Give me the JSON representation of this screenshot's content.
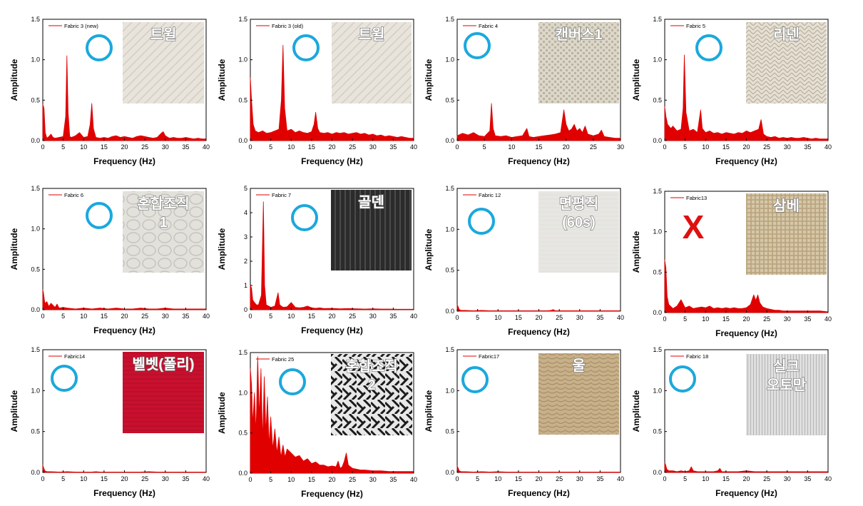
{
  "chart_data": [
    {
      "type": "line",
      "legend": "Fabric 3 (new)",
      "xlabel": "Frequency (Hz)",
      "ylabel": "Amplitude",
      "xlim": [
        0,
        40
      ],
      "ylim": [
        0,
        1.5
      ],
      "xticks": [
        0,
        5,
        10,
        15,
        20,
        25,
        30,
        35,
        40
      ],
      "yticks": [
        "0.0",
        "0.5",
        "1.0",
        "1.5"
      ],
      "fabric_label": "트윌",
      "mark": "O",
      "swatch": {
        "type": "twill",
        "bg": "#e8e4dc",
        "line": "#d2cdc2"
      },
      "x": [
        0,
        0.3,
        0.6,
        1,
        1.5,
        2,
        2.5,
        3,
        4,
        5,
        5.6,
        5.9,
        6.2,
        6.6,
        7,
        8,
        9,
        10,
        11,
        11.6,
        12,
        12.4,
        13,
        14,
        15,
        16,
        17,
        18,
        19,
        20,
        21,
        22,
        23,
        24,
        25,
        26,
        27,
        28,
        29,
        29.5,
        30,
        31,
        32,
        33,
        34,
        35,
        36,
        37,
        38,
        39,
        40
      ],
      "y": [
        0.45,
        0.4,
        0.1,
        0.03,
        0.05,
        0.08,
        0.04,
        0.03,
        0.04,
        0.05,
        0.3,
        1.05,
        0.35,
        0.05,
        0.04,
        0.06,
        0.1,
        0.04,
        0.05,
        0.2,
        0.46,
        0.15,
        0.04,
        0.03,
        0.04,
        0.03,
        0.05,
        0.06,
        0.04,
        0.05,
        0.04,
        0.03,
        0.05,
        0.06,
        0.05,
        0.04,
        0.03,
        0.04,
        0.09,
        0.11,
        0.06,
        0.03,
        0.04,
        0.03,
        0.03,
        0.04,
        0.03,
        0.02,
        0.03,
        0.02,
        0.02
      ]
    },
    {
      "type": "line",
      "legend": "Fabric 3 (old)",
      "xlabel": "Frequency (Hz)",
      "ylabel": "Amplitude",
      "xlim": [
        0,
        40
      ],
      "ylim": [
        0,
        1.5
      ],
      "xticks": [
        0,
        5,
        10,
        15,
        20,
        25,
        30,
        35,
        40
      ],
      "yticks": [
        "0.0",
        "0.5",
        "1.0",
        "1.5"
      ],
      "fabric_label": "트윌",
      "mark": "O",
      "swatch": {
        "type": "twill",
        "bg": "#e8e4dc",
        "line": "#d2cdc2"
      },
      "x": [
        0,
        0.3,
        0.7,
        1.2,
        2,
        3,
        4,
        5,
        6,
        7,
        7.6,
        8,
        8.4,
        9,
        10,
        11,
        12,
        13,
        14,
        15,
        15.6,
        16,
        16.5,
        17,
        18,
        19,
        20,
        21,
        22,
        23,
        24,
        25,
        26,
        27,
        28,
        29,
        30,
        31,
        32,
        33,
        34,
        35,
        36,
        37,
        38,
        39,
        40
      ],
      "y": [
        0.78,
        0.5,
        0.2,
        0.12,
        0.1,
        0.12,
        0.09,
        0.1,
        0.12,
        0.14,
        0.5,
        1.18,
        0.4,
        0.12,
        0.14,
        0.1,
        0.12,
        0.1,
        0.09,
        0.11,
        0.2,
        0.35,
        0.15,
        0.1,
        0.09,
        0.1,
        0.08,
        0.1,
        0.09,
        0.1,
        0.08,
        0.09,
        0.1,
        0.08,
        0.09,
        0.07,
        0.08,
        0.06,
        0.07,
        0.05,
        0.06,
        0.05,
        0.04,
        0.05,
        0.04,
        0.03,
        0.03
      ]
    },
    {
      "type": "line",
      "legend": "Fabric 4",
      "xlabel": "Frequency (Hz)",
      "ylabel": "Amplitude",
      "xlim": [
        0,
        30
      ],
      "ylim": [
        0,
        1.5
      ],
      "xticks": [
        0,
        5,
        10,
        15,
        20,
        25,
        30
      ],
      "yticks": [
        "0.0",
        "0.5",
        "1.0",
        "1.5"
      ],
      "fabric_label": "캔버스1",
      "mark": "O",
      "swatch": {
        "type": "canvas",
        "bg": "#dcd7c9",
        "line": "#b9b3a2"
      },
      "x": [
        0,
        1,
        2,
        3,
        4,
        5,
        6,
        6.3,
        6.6,
        7,
        8,
        9,
        10,
        11,
        12,
        12.8,
        13.2,
        14,
        15,
        16,
        17,
        18,
        19,
        19.6,
        20,
        20.5,
        21,
        21.5,
        22,
        22.5,
        23,
        23.5,
        24,
        25,
        26,
        26.5,
        27,
        28,
        29,
        30
      ],
      "y": [
        0.06,
        0.09,
        0.07,
        0.1,
        0.06,
        0.05,
        0.12,
        0.46,
        0.15,
        0.06,
        0.05,
        0.06,
        0.04,
        0.05,
        0.06,
        0.15,
        0.05,
        0.04,
        0.05,
        0.06,
        0.07,
        0.08,
        0.1,
        0.38,
        0.2,
        0.12,
        0.14,
        0.2,
        0.12,
        0.15,
        0.1,
        0.18,
        0.08,
        0.06,
        0.08,
        0.13,
        0.05,
        0.04,
        0.03,
        0.03
      ]
    },
    {
      "type": "line",
      "legend": "Fabric 5",
      "xlabel": "Frequency (Hz)",
      "ylabel": "Amplitude",
      "xlim": [
        0,
        40
      ],
      "ylim": [
        0,
        1.5
      ],
      "xticks": [
        0,
        5,
        10,
        15,
        20,
        25,
        30,
        35,
        40
      ],
      "yticks": [
        "0.0",
        "0.5",
        "1.0",
        "1.5"
      ],
      "fabric_label": "리넨",
      "mark": "O",
      "swatch": {
        "type": "herring",
        "bg": "#e6e0d4",
        "line": "#b7ae9c"
      },
      "x": [
        0,
        0.3,
        0.7,
        1.5,
        2,
        3,
        4,
        4.5,
        4.8,
        5.2,
        6,
        7,
        8,
        8.8,
        9.2,
        10,
        11,
        12,
        13,
        14,
        15,
        16,
        17,
        18,
        19,
        20,
        21,
        22,
        23,
        23.6,
        24.2,
        25,
        26,
        27,
        28,
        29,
        30,
        31,
        32,
        33,
        34,
        35,
        36,
        37,
        38,
        39,
        40
      ],
      "y": [
        0.42,
        0.3,
        0.2,
        0.15,
        0.18,
        0.12,
        0.14,
        0.4,
        1.06,
        0.35,
        0.12,
        0.14,
        0.1,
        0.38,
        0.15,
        0.1,
        0.12,
        0.09,
        0.1,
        0.08,
        0.1,
        0.09,
        0.08,
        0.1,
        0.09,
        0.12,
        0.1,
        0.12,
        0.14,
        0.26,
        0.08,
        0.05,
        0.04,
        0.05,
        0.03,
        0.04,
        0.03,
        0.04,
        0.03,
        0.03,
        0.04,
        0.03,
        0.02,
        0.03,
        0.02,
        0.02,
        0.02
      ]
    },
    {
      "type": "line",
      "legend": "Fabric 6",
      "xlabel": "Frequency (Hz)",
      "ylabel": "Amplitude",
      "xlim": [
        0,
        40
      ],
      "ylim": [
        0,
        1.5
      ],
      "xticks": [
        0,
        5,
        10,
        15,
        20,
        25,
        30,
        35,
        40
      ],
      "yticks": [
        "0.0",
        "0.5",
        "1.0",
        "1.5"
      ],
      "fabric_label": "혼합조직 1",
      "mark": "O",
      "swatch": {
        "type": "honeycomb",
        "bg": "#e2e1dc",
        "line": "#c6c4bc"
      },
      "x": [
        0,
        0.2,
        0.5,
        1,
        1.5,
        2,
        3,
        3.5,
        4,
        5,
        6,
        8,
        10,
        12,
        14,
        16,
        18,
        20,
        22,
        24,
        26,
        28,
        30,
        32,
        34,
        36,
        38,
        40
      ],
      "y": [
        0.25,
        0.2,
        0.08,
        0.1,
        0.04,
        0.08,
        0.03,
        0.07,
        0.02,
        0.03,
        0.02,
        0.01,
        0.02,
        0.01,
        0.02,
        0.01,
        0.02,
        0.01,
        0.01,
        0.02,
        0.01,
        0.01,
        0.02,
        0.01,
        0.01,
        0.01,
        0.01,
        0.01
      ]
    },
    {
      "type": "line",
      "legend": "Fabric 7",
      "xlabel": "Frequency (Hz)",
      "ylabel": "Amplitude",
      "xlim": [
        0,
        40
      ],
      "ylim": [
        0,
        5
      ],
      "xticks": [
        0,
        5,
        10,
        15,
        20,
        25,
        30,
        35,
        40
      ],
      "yticks": [
        "0",
        "1",
        "2",
        "3",
        "4",
        "5"
      ],
      "fabric_label": "골덴",
      "mark": "O",
      "swatch": {
        "type": "corduroy",
        "bg": "#2b2b2b",
        "line": "#4a4a4a"
      },
      "x": [
        0,
        0.3,
        0.6,
        1,
        1.5,
        2,
        2.7,
        3.2,
        3.5,
        3.9,
        4.5,
        5,
        6,
        6.8,
        7.2,
        8,
        9,
        10,
        11,
        12,
        13,
        14,
        15,
        16,
        17,
        18,
        20,
        22,
        24,
        26,
        28,
        30,
        32,
        34,
        36,
        38,
        40
      ],
      "y": [
        1.0,
        0.9,
        0.4,
        0.3,
        0.2,
        0.2,
        0.6,
        4.45,
        1.0,
        0.2,
        0.15,
        0.1,
        0.15,
        0.7,
        0.2,
        0.1,
        0.12,
        0.3,
        0.1,
        0.08,
        0.1,
        0.15,
        0.08,
        0.06,
        0.08,
        0.05,
        0.06,
        0.04,
        0.05,
        0.04,
        0.03,
        0.04,
        0.03,
        0.03,
        0.02,
        0.02,
        0.02
      ]
    },
    {
      "type": "line",
      "legend": "Fabric 12",
      "xlabel": "Frequency (Hz)",
      "ylabel": "Amplitude",
      "xlim": [
        0,
        40
      ],
      "ylim": [
        0,
        1.5
      ],
      "xticks": [
        0,
        5,
        10,
        15,
        20,
        25,
        30,
        35,
        40
      ],
      "yticks": [
        "0.0",
        "0.5",
        "1.0",
        "1.5"
      ],
      "fabric_label": "면평직 (60s)",
      "mark": "O",
      "swatch": {
        "type": "plain",
        "bg": "#e7e6e2",
        "line": "#dedcd6"
      },
      "x": [
        0,
        0.2,
        0.5,
        1,
        2,
        4,
        6,
        8,
        10,
        12,
        14,
        16,
        18,
        20,
        22,
        23,
        23.5,
        24,
        26,
        28,
        30,
        32,
        34,
        36,
        38,
        40
      ],
      "y": [
        0.08,
        0.06,
        0.02,
        0.01,
        0.01,
        0.005,
        0.01,
        0.005,
        0.005,
        0.005,
        0.005,
        0.005,
        0.005,
        0.005,
        0.005,
        0.01,
        0.02,
        0.005,
        0.005,
        0.005,
        0.005,
        0.005,
        0.005,
        0.005,
        0.005,
        0.005
      ]
    },
    {
      "type": "line",
      "legend": "Fabric13",
      "xlabel": "Frequency (Hz)",
      "ylabel": "Amplitude",
      "xlim": [
        0,
        40
      ],
      "ylim": [
        0,
        1.5
      ],
      "xticks": [
        0,
        5,
        10,
        15,
        20,
        25,
        30,
        35,
        40
      ],
      "yticks": [
        "0.0",
        "0.5",
        "1.0",
        "1.5"
      ],
      "fabric_label": "삼베",
      "mark": "X",
      "swatch": {
        "type": "hemp",
        "bg": "#d6c7a8",
        "line": "#b7a27c"
      },
      "x": [
        0,
        0.3,
        0.6,
        1,
        2,
        3,
        4,
        5,
        6,
        7,
        8,
        9,
        10,
        11,
        12,
        13,
        14,
        15,
        16,
        17,
        18,
        19,
        20,
        21,
        21.8,
        22.3,
        22.8,
        23.3,
        24,
        25,
        26,
        27,
        28,
        29,
        30,
        32,
        34,
        36,
        38,
        40
      ],
      "y": [
        0.65,
        0.55,
        0.2,
        0.1,
        0.05,
        0.08,
        0.16,
        0.06,
        0.08,
        0.05,
        0.06,
        0.07,
        0.06,
        0.08,
        0.05,
        0.06,
        0.05,
        0.06,
        0.05,
        0.06,
        0.05,
        0.05,
        0.06,
        0.1,
        0.22,
        0.15,
        0.22,
        0.12,
        0.07,
        0.05,
        0.04,
        0.03,
        0.03,
        0.02,
        0.02,
        0.02,
        0.02,
        0.02,
        0.02,
        0.01
      ]
    },
    {
      "type": "line",
      "legend": "Fabric14",
      "xlabel": "Frequency (Hz)",
      "ylabel": "Amplitude",
      "xlim": [
        0,
        40
      ],
      "ylim": [
        0,
        1.5
      ],
      "xticks": [
        0,
        5,
        10,
        15,
        20,
        25,
        30,
        35,
        40
      ],
      "yticks": [
        "0.0",
        "0.5",
        "1.0",
        "1.5"
      ],
      "fabric_label": "벨벳(폴리)",
      "mark": "O",
      "swatch": {
        "type": "velvet",
        "bg": "#c8102e",
        "line": "#a60d25"
      },
      "x": [
        0,
        0.2,
        0.5,
        1,
        2,
        4,
        6,
        8,
        10,
        12,
        13,
        14,
        16,
        18,
        20,
        22,
        24,
        26,
        28,
        30,
        32,
        34,
        36,
        38,
        40
      ],
      "y": [
        0.09,
        0.06,
        0.02,
        0.01,
        0.01,
        0.005,
        0.01,
        0.005,
        0.005,
        0.005,
        0.01,
        0.005,
        0.005,
        0.005,
        0.005,
        0.005,
        0.005,
        0.01,
        0.005,
        0.005,
        0.005,
        0.005,
        0.005,
        0.005,
        0.005
      ]
    },
    {
      "type": "line",
      "legend": "Fabric 25",
      "xlabel": "Frequency (Hz)",
      "ylabel": "Amplitude",
      "xlim": [
        0,
        40
      ],
      "ylim": [
        0,
        1.5
      ],
      "xticks": [
        0,
        5,
        10,
        15,
        20,
        25,
        30,
        35,
        40
      ],
      "yticks": [
        "0.0",
        "0.5",
        "1.0",
        "1.5"
      ],
      "fabric_label": "혼합조직 2",
      "mark": "O",
      "swatch": {
        "type": "mixed",
        "bg": "#e8e8e8",
        "line": "#1c1c1c"
      },
      "x": [
        0,
        0.3,
        0.6,
        1,
        1.4,
        1.8,
        2.2,
        2.6,
        3,
        3.4,
        3.8,
        4.2,
        4.6,
        5,
        5.5,
        6,
        6.5,
        7,
        7.5,
        8,
        8.5,
        9,
        10,
        11,
        12,
        13,
        14,
        15,
        16,
        17,
        18,
        19,
        20,
        21,
        21.5,
        22,
        22.5,
        23,
        23.5,
        24,
        25,
        26,
        27,
        28,
        30,
        32,
        34,
        36,
        38,
        40
      ],
      "y": [
        1.3,
        1.1,
        0.6,
        1.0,
        0.5,
        1.45,
        0.7,
        1.3,
        0.4,
        1.2,
        0.5,
        0.95,
        0.35,
        0.7,
        0.3,
        0.55,
        0.25,
        0.45,
        0.2,
        0.35,
        0.2,
        0.3,
        0.25,
        0.2,
        0.22,
        0.15,
        0.18,
        0.12,
        0.14,
        0.1,
        0.1,
        0.08,
        0.09,
        0.08,
        0.15,
        0.06,
        0.08,
        0.15,
        0.25,
        0.1,
        0.06,
        0.05,
        0.04,
        0.04,
        0.03,
        0.03,
        0.02,
        0.02,
        0.02,
        0.02
      ]
    },
    {
      "type": "line",
      "legend": "Fabric17",
      "xlabel": "Frequency (Hz)",
      "ylabel": "Amplitude",
      "xlim": [
        0,
        40
      ],
      "ylim": [
        0,
        1.5
      ],
      "xticks": [
        0,
        5,
        10,
        15,
        20,
        25,
        30,
        35,
        40
      ],
      "yticks": [
        "0.0",
        "0.5",
        "1.0",
        "1.5"
      ],
      "fabric_label": "울",
      "mark": "O",
      "swatch": {
        "type": "wool",
        "bg": "#c7b08a",
        "line": "#a88f66"
      },
      "x": [
        0,
        0.2,
        0.5,
        1,
        2,
        4,
        6,
        8,
        10,
        12,
        14,
        16,
        18,
        20,
        22,
        24,
        26,
        28,
        30,
        32,
        34,
        36,
        38,
        40
      ],
      "y": [
        0.08,
        0.06,
        0.02,
        0.01,
        0.01,
        0.005,
        0.01,
        0.005,
        0.01,
        0.005,
        0.005,
        0.005,
        0.005,
        0.005,
        0.005,
        0.005,
        0.005,
        0.005,
        0.005,
        0.005,
        0.005,
        0.005,
        0.005,
        0.005
      ]
    },
    {
      "type": "line",
      "legend": "Fabric 18",
      "xlabel": "Frequency (Hz)",
      "ylabel": "Amplitude",
      "xlim": [
        0,
        40
      ],
      "ylim": [
        0,
        1.5
      ],
      "xticks": [
        0,
        5,
        10,
        15,
        20,
        25,
        30,
        35,
        40
      ],
      "yticks": [
        "0.0",
        "0.5",
        "1.0",
        "1.5"
      ],
      "fabric_label": "실크 오토만",
      "mark": "O",
      "swatch": {
        "type": "ottoman",
        "bg": "#dfdfdf",
        "line": "#b5b5b5"
      },
      "x": [
        0,
        0.2,
        0.5,
        1,
        2,
        3,
        4,
        5,
        6,
        6.5,
        7,
        8,
        10,
        12,
        13,
        13.5,
        14,
        16,
        18,
        20,
        22,
        24,
        26,
        28,
        30,
        32,
        34,
        36,
        38,
        40
      ],
      "y": [
        0.12,
        0.1,
        0.04,
        0.02,
        0.02,
        0.01,
        0.02,
        0.01,
        0.02,
        0.07,
        0.02,
        0.01,
        0.01,
        0.01,
        0.02,
        0.05,
        0.01,
        0.01,
        0.01,
        0.02,
        0.01,
        0.01,
        0.01,
        0.01,
        0.01,
        0.01,
        0.01,
        0.01,
        0.01,
        0.01
      ]
    }
  ],
  "colors": {
    "series": "#e00000",
    "circle": "#1ba8dc",
    "cross": "#e01010",
    "axis": "#000000",
    "label_text": "#ffffff"
  }
}
